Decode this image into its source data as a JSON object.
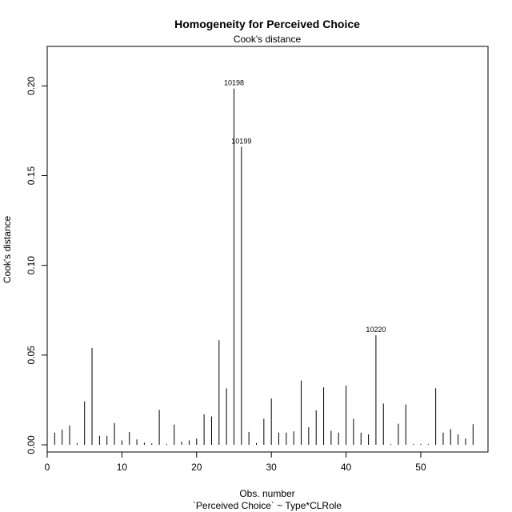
{
  "chart_data": {
    "type": "bar",
    "title": "Homogeneity for Perceived Choice",
    "subtitle": "Cook's distance",
    "xlabel": "Obs. number",
    "xlabel2": "`Perceived Choice` ~ Type*CLRole",
    "ylabel": "Cook's distance",
    "xlim": [
      0,
      59
    ],
    "ylim": [
      -0.004,
      0.222
    ],
    "x_ticks": [
      0,
      10,
      20,
      30,
      40,
      50
    ],
    "x_tick_labels": [
      "0",
      "10",
      "20",
      "30",
      "40",
      "50"
    ],
    "y_ticks": [
      0.0,
      0.05,
      0.1,
      0.15,
      0.2
    ],
    "y_tick_labels": [
      "0.00",
      "0.05",
      "0.10",
      "0.15",
      "0.20"
    ],
    "grid": false,
    "series": [
      {
        "name": "Cook's distance",
        "x": [
          1,
          2,
          3,
          4,
          5,
          6,
          7,
          8,
          9,
          10,
          11,
          12,
          13,
          14,
          15,
          16,
          17,
          18,
          19,
          20,
          21,
          22,
          23,
          24,
          25,
          26,
          27,
          28,
          29,
          30,
          31,
          32,
          33,
          34,
          35,
          36,
          37,
          38,
          39,
          40,
          41,
          42,
          43,
          44,
          45,
          46,
          47,
          48,
          49,
          50,
          51,
          52,
          53,
          54,
          55,
          56,
          57
        ],
        "values": [
          0.0068,
          0.0085,
          0.0108,
          0.001,
          0.0242,
          0.054,
          0.005,
          0.005,
          0.0122,
          0.0025,
          0.0072,
          0.003,
          0.0012,
          0.0008,
          0.0195,
          0.0005,
          0.0113,
          0.0018,
          0.0025,
          0.0035,
          0.017,
          0.0158,
          0.0583,
          0.0315,
          0.1985,
          0.166,
          0.0072,
          0.001,
          0.0145,
          0.0258,
          0.0068,
          0.0068,
          0.0075,
          0.0358,
          0.0098,
          0.0192,
          0.032,
          0.0078,
          0.0068,
          0.033,
          0.0145,
          0.0068,
          0.0058,
          0.061,
          0.023,
          0.0005,
          0.0118,
          0.0225,
          0.0005,
          0.0005,
          0.0005,
          0.0315,
          0.0068,
          0.0088,
          0.0058,
          0.0035,
          0.0115
        ]
      }
    ],
    "annotations": [
      {
        "x": 25,
        "y": 0.1985,
        "label": "10198"
      },
      {
        "x": 26,
        "y": 0.166,
        "label": "10199"
      },
      {
        "x": 44,
        "y": 0.061,
        "label": "10220"
      }
    ]
  }
}
